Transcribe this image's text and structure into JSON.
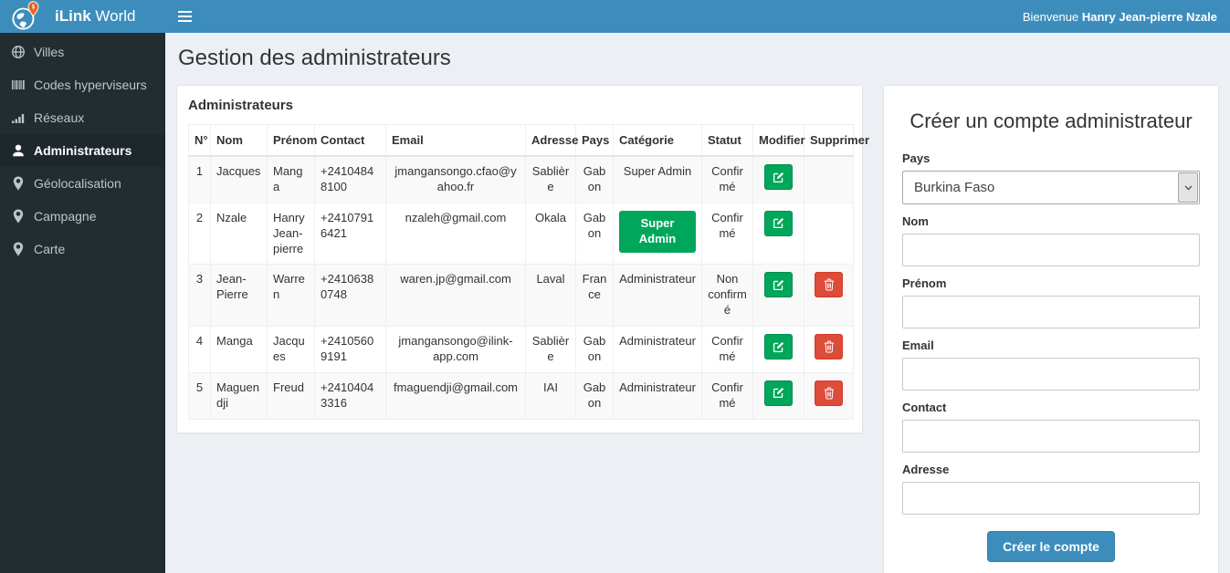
{
  "colors": {
    "navbar": "#3c8dbc",
    "sidebar_bg": "#222d32",
    "sidebar_active_bg": "#1e282c",
    "content_bg": "#ecf0f5",
    "success": "#00a65a",
    "danger": "#dd4b39",
    "primary": "#3c8dbc",
    "pin_orange": "#e8692d"
  },
  "header": {
    "brand_bold": "iLink",
    "brand_rest": " World",
    "welcome_prefix": "Bienvenue ",
    "welcome_name": "Hanry Jean-pierre Nzale"
  },
  "sidebar": {
    "items": [
      {
        "label": "Villes",
        "icon": "globe-icon",
        "active": false
      },
      {
        "label": "Codes hyperviseurs",
        "icon": "barcode-icon",
        "active": false
      },
      {
        "label": "Réseaux",
        "icon": "signal-icon",
        "active": false
      },
      {
        "label": "Administrateurs",
        "icon": "user-icon",
        "active": true
      },
      {
        "label": "Géolocalisation",
        "icon": "map-marker-icon",
        "active": false
      },
      {
        "label": "Campagne",
        "icon": "map-marker-icon",
        "active": false
      },
      {
        "label": "Carte",
        "icon": "map-marker-icon",
        "active": false
      }
    ]
  },
  "page": {
    "title": "Gestion des administrateurs"
  },
  "admin_panel": {
    "title": "Administrateurs",
    "columns": [
      "N°",
      "Nom",
      "Prénom",
      "Contact",
      "Email",
      "Adresse",
      "Pays",
      "Catégorie",
      "Statut",
      "Modifier",
      "Supprimer"
    ],
    "rows": [
      {
        "num": "1",
        "nom": "Jacques",
        "prenom": "Manga",
        "contact": "+24104848100",
        "email": "jmangansongo.cfao@yahoo.fr",
        "adresse": "Sablière",
        "pays": "Gabon",
        "categorie": "Super Admin",
        "categorie_badge": false,
        "statut": "Confirmé",
        "can_delete": false
      },
      {
        "num": "2",
        "nom": "Nzale",
        "prenom": "Hanry Jean-pierre",
        "contact": "+24107916421",
        "email": "nzaleh@gmail.com",
        "adresse": "Okala",
        "pays": "Gabon",
        "categorie": "Super Admin",
        "categorie_badge": true,
        "statut": "Confirmé",
        "can_delete": false
      },
      {
        "num": "3",
        "nom": "Jean-Pierre",
        "prenom": "Warren",
        "contact": "+24106380748",
        "email": "waren.jp@gmail.com",
        "adresse": "Laval",
        "pays": "France",
        "categorie": "Administrateur",
        "categorie_badge": false,
        "statut": "Non confirmé",
        "can_delete": true
      },
      {
        "num": "4",
        "nom": "Manga",
        "prenom": "Jacques",
        "contact": "+24105609191",
        "email": "jmangansongo@ilink-app.com",
        "adresse": "Sablière",
        "pays": "Gabon",
        "categorie": "Administrateur",
        "categorie_badge": false,
        "statut": "Confirmé",
        "can_delete": true
      },
      {
        "num": "5",
        "nom": "Maguendji",
        "prenom": "Freud",
        "contact": "+24104043316",
        "email": "fmaguendji@gmail.com",
        "adresse": "IAI",
        "pays": "Gabon",
        "categorie": "Administrateur",
        "categorie_badge": false,
        "statut": "Confirmé",
        "can_delete": true
      }
    ]
  },
  "form": {
    "title": "Créer un compte administrateur",
    "labels": {
      "pays": "Pays",
      "nom": "Nom",
      "prenom": "Prénom",
      "email": "Email",
      "contact": "Contact",
      "adresse": "Adresse"
    },
    "pays_value": "Burkina Faso",
    "submit_label": "Créer le compte"
  }
}
